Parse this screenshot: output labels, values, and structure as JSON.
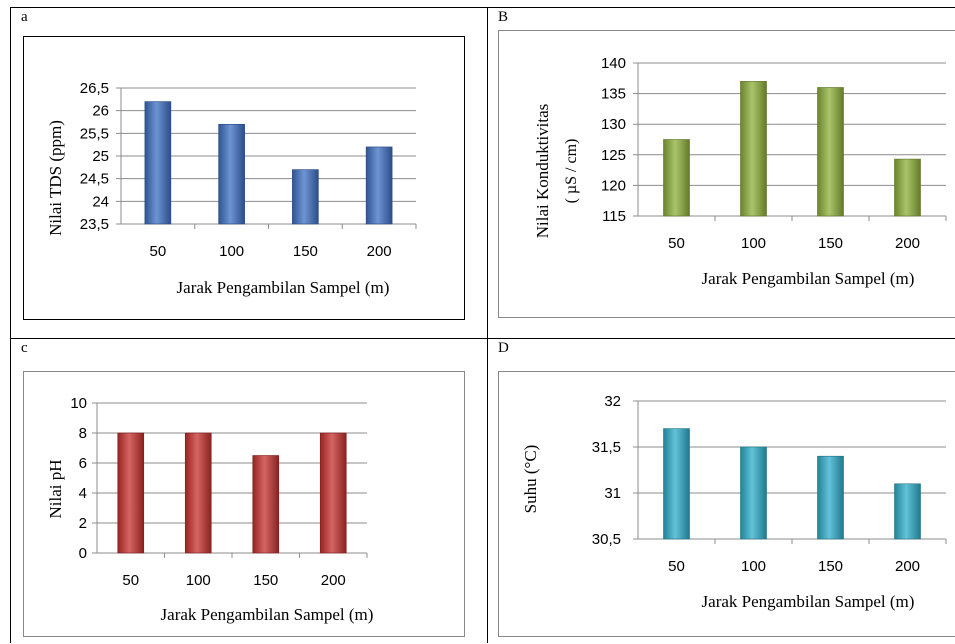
{
  "panels": [
    {
      "label": "a",
      "chart_data": {
        "type": "bar",
        "categories": [
          "50",
          "100",
          "150",
          "200"
        ],
        "values": [
          26.2,
          25.7,
          24.7,
          25.2
        ],
        "title": "",
        "xlabel": "Jarak Pengambilan Sampel (m)",
        "ylabel": "Nilai TDS (ppm)",
        "ylim": [
          23.5,
          26.5
        ],
        "yticks": [
          "23,5",
          "24",
          "24,5",
          "25",
          "25,5",
          "26",
          "26,5"
        ],
        "grid": true,
        "color": "#3E70C4"
      }
    },
    {
      "label": "B",
      "chart_data": {
        "type": "bar",
        "categories": [
          "50",
          "100",
          "150",
          "200"
        ],
        "values": [
          127.5,
          137,
          136,
          124.3
        ],
        "title": "",
        "xlabel": "Jarak Pengambilan Sampel (m)",
        "ylabel": "Nilai Konduktivitas",
        "ylabel2": "( µS / cm)",
        "ylim": [
          115,
          140
        ],
        "yticks": [
          "115",
          "120",
          "125",
          "130",
          "135",
          "140"
        ],
        "grid": true,
        "color": "#8DB03A"
      }
    },
    {
      "label": "c",
      "chart_data": {
        "type": "bar",
        "categories": [
          "50",
          "100",
          "150",
          "200"
        ],
        "values": [
          8,
          8,
          6.5,
          8
        ],
        "title": "",
        "xlabel": "Jarak Pengambilan Sampel (m)",
        "ylabel": "Nilai pH",
        "ylim": [
          0,
          10
        ],
        "yticks": [
          "0",
          "2",
          "4",
          "6",
          "8",
          "10"
        ],
        "grid": true,
        "color": "#C7302E"
      }
    },
    {
      "label": "D",
      "chart_data": {
        "type": "bar",
        "categories": [
          "50",
          "100",
          "150",
          "200"
        ],
        "values": [
          31.7,
          31.5,
          31.4,
          31.1
        ],
        "title": "",
        "xlabel": "Jarak Pengambilan Sampel (m)",
        "ylabel": "Suhu (°C)",
        "ylim": [
          30.5,
          32
        ],
        "yticks": [
          "30,5",
          "31",
          "31,5",
          "32"
        ],
        "grid": true,
        "color": "#2EAFCB"
      }
    }
  ]
}
